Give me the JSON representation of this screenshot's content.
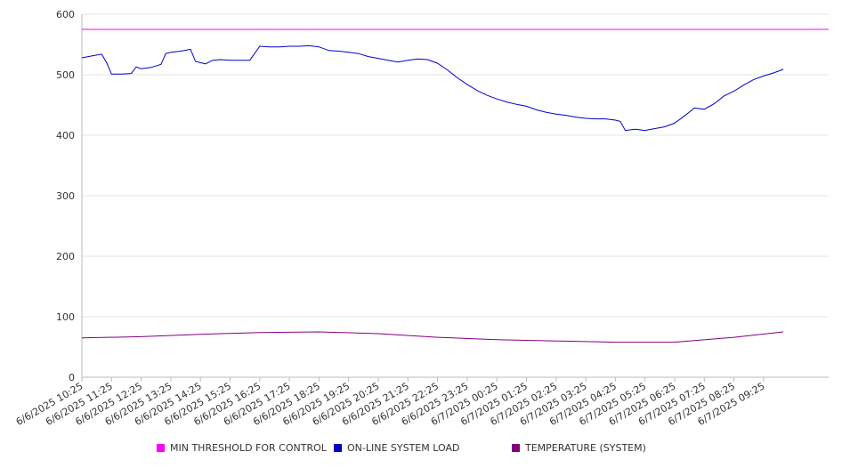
{
  "chart_data": {
    "type": "line",
    "title": "",
    "xlabel": "",
    "ylabel": "",
    "ylim": [
      0,
      600
    ],
    "yticks": [
      0,
      100,
      200,
      300,
      400,
      500,
      600
    ],
    "grid": true,
    "legend_position": "bottom",
    "x_tick_labels": [
      "6/6/2025 10:25",
      "6/6/2025 11:25",
      "6/6/2025 12:25",
      "6/6/2025 13:25",
      "6/6/2025 14:25",
      "6/6/2025 15:25",
      "6/6/2025 16:25",
      "6/6/2025 17:25",
      "6/6/2025 18:25",
      "6/6/2025 19:25",
      "6/6/2025 20:25",
      "6/6/2025 21:25",
      "6/6/2025 22:25",
      "6/6/2025 23:25",
      "6/7/2025 00:25",
      "6/7/2025 01:25",
      "6/7/2025 02:25",
      "6/7/2025 03:25",
      "6/7/2025 04:25",
      "6/7/2025 05:25",
      "6/7/2025 06:25",
      "6/7/2025 07:25",
      "6/7/2025 08:25",
      "6/7/2025 09:25"
    ],
    "series": [
      {
        "name": "MIN THRESHOLD FOR CONTROL",
        "color": "#ff00ff",
        "points": [
          [
            "6/6/2025 10:25",
            575
          ],
          [
            "6/7/2025 09:25",
            575
          ]
        ]
      },
      {
        "name": "ON-LINE SYSTEM LOAD",
        "color": "#0000cc",
        "points": [
          [
            "6/6/2025 10:25",
            528
          ],
          [
            "6/6/2025 10:45",
            531
          ],
          [
            "6/6/2025 11:05",
            534
          ],
          [
            "6/6/2025 11:15",
            520
          ],
          [
            "6/6/2025 11:25",
            501
          ],
          [
            "6/6/2025 11:45",
            501
          ],
          [
            "6/6/2025 12:05",
            502
          ],
          [
            "6/6/2025 12:15",
            513
          ],
          [
            "6/6/2025 12:25",
            510
          ],
          [
            "6/6/2025 12:45",
            512
          ],
          [
            "6/6/2025 13:05",
            517
          ],
          [
            "6/6/2025 13:15",
            535
          ],
          [
            "6/6/2025 13:25",
            537
          ],
          [
            "6/6/2025 13:45",
            539
          ],
          [
            "6/6/2025 14:05",
            542
          ],
          [
            "6/6/2025 14:15",
            522
          ],
          [
            "6/6/2025 14:25",
            520
          ],
          [
            "6/6/2025 14:35",
            518
          ],
          [
            "6/6/2025 14:50",
            524
          ],
          [
            "6/6/2025 15:05",
            525
          ],
          [
            "6/6/2025 15:25",
            524
          ],
          [
            "6/6/2025 15:45",
            524
          ],
          [
            "6/6/2025 16:05",
            524
          ],
          [
            "6/6/2025 16:25",
            547
          ],
          [
            "6/6/2025 16:45",
            546
          ],
          [
            "6/6/2025 17:05",
            546
          ],
          [
            "6/6/2025 17:25",
            547
          ],
          [
            "6/6/2025 17:45",
            547
          ],
          [
            "6/6/2025 18:05",
            548
          ],
          [
            "6/6/2025 18:25",
            546
          ],
          [
            "6/6/2025 18:45",
            540
          ],
          [
            "6/6/2025 19:05",
            539
          ],
          [
            "6/6/2025 19:25",
            537
          ],
          [
            "6/6/2025 19:45",
            535
          ],
          [
            "6/6/2025 20:05",
            530
          ],
          [
            "6/6/2025 20:25",
            527
          ],
          [
            "6/6/2025 20:45",
            524
          ],
          [
            "6/6/2025 21:05",
            521
          ],
          [
            "6/6/2025 21:25",
            524
          ],
          [
            "6/6/2025 21:45",
            526
          ],
          [
            "6/6/2025 22:05",
            525
          ],
          [
            "6/6/2025 22:25",
            519
          ],
          [
            "6/6/2025 22:45",
            508
          ],
          [
            "6/6/2025 23:05",
            495
          ],
          [
            "6/6/2025 23:25",
            484
          ],
          [
            "6/6/2025 23:45",
            474
          ],
          [
            "6/7/2025 00:05",
            466
          ],
          [
            "6/7/2025 00:25",
            460
          ],
          [
            "6/7/2025 00:45",
            455
          ],
          [
            "6/7/2025 01:05",
            451
          ],
          [
            "6/7/2025 01:25",
            448
          ],
          [
            "6/7/2025 01:45",
            442
          ],
          [
            "6/7/2025 02:05",
            438
          ],
          [
            "6/7/2025 02:25",
            435
          ],
          [
            "6/7/2025 02:45",
            433
          ],
          [
            "6/7/2025 03:05",
            430
          ],
          [
            "6/7/2025 03:25",
            428
          ],
          [
            "6/7/2025 03:45",
            427
          ],
          [
            "6/7/2025 04:05",
            427
          ],
          [
            "6/7/2025 04:25",
            425
          ],
          [
            "6/7/2025 04:35",
            423
          ],
          [
            "6/7/2025 04:45",
            408
          ],
          [
            "6/7/2025 05:05",
            410
          ],
          [
            "6/7/2025 05:25",
            408
          ],
          [
            "6/7/2025 05:45",
            411
          ],
          [
            "6/7/2025 06:05",
            414
          ],
          [
            "6/7/2025 06:25",
            420
          ],
          [
            "6/7/2025 06:45",
            432
          ],
          [
            "6/7/2025 07:05",
            445
          ],
          [
            "6/7/2025 07:25",
            443
          ],
          [
            "6/7/2025 07:45",
            452
          ],
          [
            "6/7/2025 08:05",
            465
          ],
          [
            "6/7/2025 08:25",
            473
          ],
          [
            "6/7/2025 08:45",
            483
          ],
          [
            "6/7/2025 09:05",
            492
          ],
          [
            "6/7/2025 09:25",
            498
          ],
          [
            "6/7/2025 09:45",
            503
          ],
          [
            "6/7/2025 10:05",
            509
          ]
        ]
      },
      {
        "name": "TEMPERATURE (SYSTEM)",
        "color": "#800080",
        "points": [
          [
            "6/6/2025 10:25",
            65
          ],
          [
            "6/6/2025 12:25",
            67
          ],
          [
            "6/6/2025 14:25",
            71
          ],
          [
            "6/6/2025 16:25",
            74
          ],
          [
            "6/6/2025 18:25",
            75
          ],
          [
            "6/6/2025 20:25",
            72
          ],
          [
            "6/6/2025 22:25",
            66
          ],
          [
            "6/7/2025 00:25",
            62
          ],
          [
            "6/7/2025 02:25",
            60
          ],
          [
            "6/7/2025 04:25",
            58
          ],
          [
            "6/7/2025 06:25",
            58
          ],
          [
            "6/7/2025 08:25",
            66
          ],
          [
            "6/7/2025 10:05",
            75
          ]
        ]
      }
    ]
  }
}
